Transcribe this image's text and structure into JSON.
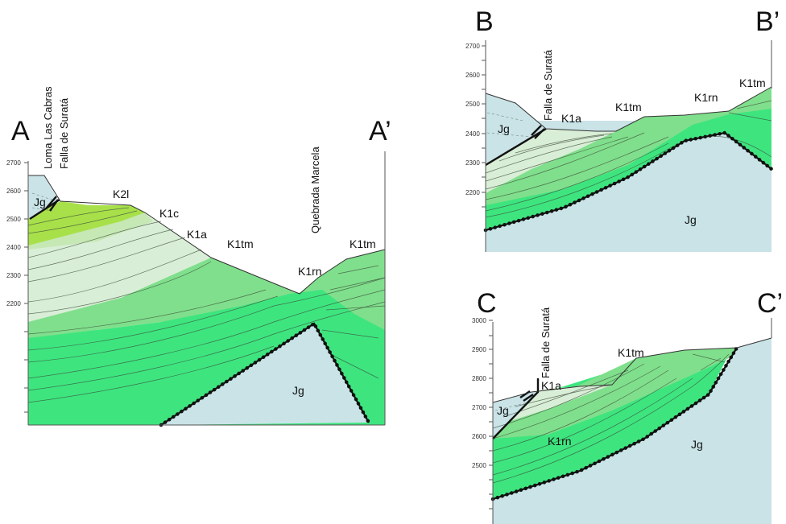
{
  "section_a": {
    "label_start": "A",
    "label_end": "A’",
    "vertical_labels": [
      "Loma Las Cabras",
      "Falla de Suratá",
      "Quebrada Marcela"
    ],
    "elevation_ticks": [
      "2700",
      "2600",
      "2500",
      "2400",
      "2300",
      "2200"
    ],
    "units": [
      "Jg",
      "K2l",
      "K1c",
      "K1a",
      "K1tm",
      "K1rn",
      "K1tm",
      "Jg"
    ]
  },
  "section_b": {
    "label_start": "B",
    "label_end": "B’",
    "vertical_labels": [
      "Falla de Suratá"
    ],
    "elevation_ticks": [
      "2700",
      "2600",
      "2500",
      "2400",
      "2300",
      "2200"
    ],
    "units": [
      "Jg",
      "K1a",
      "K1tm",
      "K1rn",
      "K1tm",
      "Jg"
    ]
  },
  "section_c": {
    "label_start": "C",
    "label_end": "C’",
    "vertical_labels": [
      "Falla de Suratá"
    ],
    "elevation_ticks": [
      "3000",
      "2900",
      "2800",
      "2700",
      "2600",
      "2500"
    ],
    "units": [
      "K1a",
      "K1tm",
      "Jg",
      "K1rn",
      "Jg"
    ]
  },
  "colors": {
    "jurassic_granite": "#c9e3e7",
    "k1rn_green": "#3ee57f",
    "k1tm_green": "#80df8c",
    "k1a_pale": "#d9eed6",
    "k2l_yellowgreen": "#a8e04a"
  }
}
